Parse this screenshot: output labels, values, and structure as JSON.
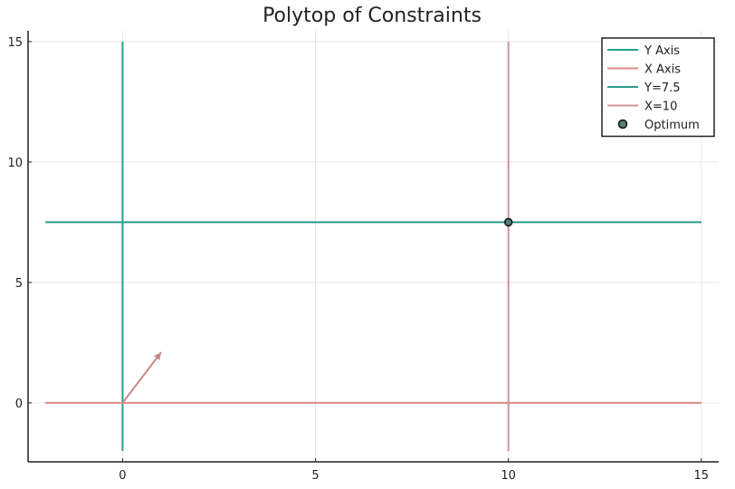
{
  "chart_data": {
    "type": "line",
    "title": "Polytop of Constraints",
    "xlabel": "",
    "ylabel": "",
    "xlim": [
      -2.45,
      15.45
    ],
    "ylim": [
      -2.45,
      15.45
    ],
    "xticks": [
      0,
      5,
      10,
      15
    ],
    "yticks": [
      0,
      5,
      10,
      15
    ],
    "grid": true,
    "legend_position": "top-right",
    "series": [
      {
        "name": "Y Axis",
        "color": "#1fa38f",
        "points": [
          [
            0,
            -2
          ],
          [
            0,
            15
          ]
        ]
      },
      {
        "name": "X Axis",
        "color": "#d98c87",
        "points": [
          [
            -2,
            0
          ],
          [
            15,
            0
          ]
        ]
      },
      {
        "name": "Y=7.5",
        "color": "#2a9a8e",
        "points": [
          [
            -2,
            7.5
          ],
          [
            15,
            7.5
          ]
        ]
      },
      {
        "name": "X=10",
        "color": "#d0939a",
        "points": [
          [
            10,
            -2
          ],
          [
            10,
            15
          ]
        ]
      }
    ],
    "points": [
      {
        "name": "Optimum",
        "x": 10,
        "y": 7.5,
        "color": "#4f8079"
      }
    ],
    "annotations": [
      {
        "type": "arrow",
        "from": [
          0,
          0
        ],
        "to": [
          1,
          2.1
        ],
        "color": "#c78a88"
      }
    ]
  }
}
